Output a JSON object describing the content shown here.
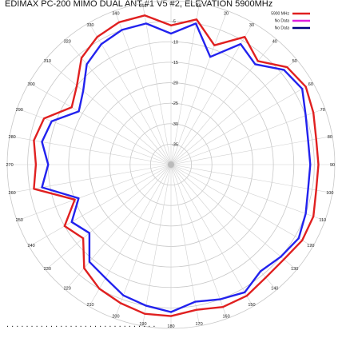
{
  "chart_data": {
    "type": "line",
    "subtype": "polar",
    "title": "EDIMAX PC-200 MIMO DUAL ANT #1 V5 #2, ELEVATION 5900MHz",
    "angular_ticks": [
      "0",
      "10",
      "20",
      "30",
      "40",
      "50",
      "60",
      "70",
      "80",
      "90",
      "100",
      "110",
      "120",
      "130",
      "140",
      "150",
      "160",
      "170",
      "180",
      "190",
      "200",
      "210",
      "220",
      "230",
      "240",
      "250",
      "260",
      "270",
      "280",
      "290",
      "300",
      "310",
      "320",
      "330",
      "340",
      "350"
    ],
    "radial_ticks": [
      "-5",
      "-10",
      "-15",
      "-20",
      "-25",
      "-30",
      "-35"
    ],
    "rlim": [
      -40,
      0
    ],
    "legend_position": "top-right",
    "legend": [
      {
        "name": "5900 MHz",
        "color": "#e02020"
      },
      {
        "name": "No Data",
        "color": "#e020e0"
      },
      {
        "name": "No Data",
        "color": "#000080"
      }
    ],
    "theta_deg": [
      0,
      10,
      20,
      30,
      40,
      50,
      60,
      70,
      80,
      90,
      100,
      110,
      120,
      130,
      140,
      150,
      160,
      170,
      180,
      190,
      200,
      210,
      220,
      230,
      240,
      250,
      260,
      270,
      280,
      290,
      300,
      310,
      320,
      330,
      340,
      350
    ],
    "series": [
      {
        "color": "#e02020",
        "values": [
          -6,
          -4,
          -9,
          -4,
          -7,
          -3,
          -2,
          -3,
          -4,
          -4,
          -4,
          -3,
          -3,
          -4,
          -4,
          -3,
          -3,
          -4,
          -3,
          -3,
          -4,
          -5,
          -7,
          -12,
          -10,
          -15,
          -6,
          -7,
          -6,
          -7,
          -12,
          -10,
          -6,
          -4,
          -3,
          -3
        ]
      },
      {
        "color": "#2222ee",
        "values": [
          -8,
          -5,
          -12,
          -6,
          -8,
          -4,
          -3,
          -5,
          -6,
          -6,
          -6,
          -5,
          -4,
          -5,
          -6,
          -4,
          -5,
          -6,
          -4,
          -5,
          -6,
          -8,
          -9,
          -14,
          -12,
          -16,
          -8,
          -10,
          -8,
          -9,
          -14,
          -12,
          -8,
          -6,
          -5,
          -5
        ]
      }
    ]
  },
  "footer_dots": ". . . . . . . . . . . . . . . . . . . . . . . . . . . . . . ."
}
